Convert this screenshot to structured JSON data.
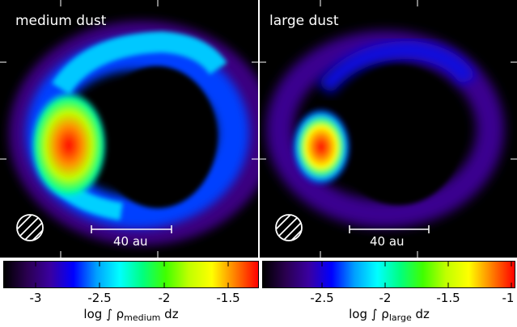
{
  "panels": [
    {
      "label": "medium dust",
      "scale_bar": "40 au"
    },
    {
      "label": "large dust",
      "scale_bar": "40 au"
    }
  ],
  "colorbars": [
    {
      "ticks": [
        "-3",
        "-2.5",
        "-2",
        "-1.5"
      ],
      "title_prefix": "log ∫ ρ",
      "title_sub": "medium",
      "title_suffix": " dz"
    },
    {
      "ticks": [
        "-2.5",
        "-2",
        "-1.5",
        "-1"
      ],
      "title_prefix": "log ∫ ρ",
      "title_sub": "large",
      "title_suffix": " dz"
    }
  ],
  "colormap": [
    "#000000",
    "#2a0050",
    "#3a00a0",
    "#0000ff",
    "#00a0ff",
    "#00ffff",
    "#00ff80",
    "#40ff00",
    "#c0ff00",
    "#ffff00",
    "#ff8000",
    "#ff0000"
  ]
}
